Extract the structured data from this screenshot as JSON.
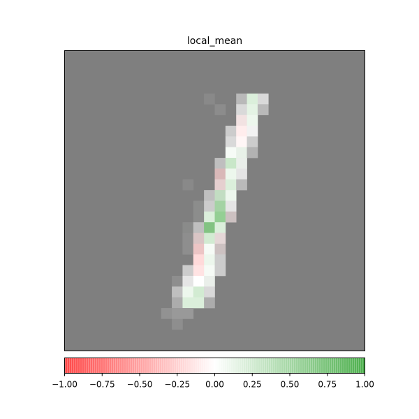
{
  "chart_data": {
    "type": "heatmap",
    "title": "local_mean",
    "grid_size": [
      28,
      28
    ],
    "background_value": 0,
    "background_color": "#7f7f7f",
    "value_range": [
      -1.0,
      1.0
    ],
    "cmap": {
      "negative": "#ff4747",
      "zero": "#ffffff",
      "positive": "#4caf4c"
    },
    "cells": [
      {
        "row": 4,
        "col": 16,
        "value": 0.0,
        "alpha": 0.45
      },
      {
        "row": 4,
        "col": 17,
        "value": 0.2,
        "alpha": 1.0
      },
      {
        "row": 4,
        "col": 18,
        "value": 0.0,
        "alpha": 0.7
      },
      {
        "row": 5,
        "col": 16,
        "value": 0.0,
        "alpha": 0.7
      },
      {
        "row": 5,
        "col": 17,
        "value": 0.15,
        "alpha": 1.0
      },
      {
        "row": 5,
        "col": 18,
        "value": 0.0,
        "alpha": 0.45
      },
      {
        "row": 6,
        "col": 16,
        "value": -0.1,
        "alpha": 0.9
      },
      {
        "row": 6,
        "col": 17,
        "value": 0.1,
        "alpha": 1.0
      },
      {
        "row": 7,
        "col": 15,
        "value": 0.0,
        "alpha": 0.6
      },
      {
        "row": 7,
        "col": 16,
        "value": -0.1,
        "alpha": 1.0
      },
      {
        "row": 7,
        "col": 17,
        "value": 0.0,
        "alpha": 0.9
      },
      {
        "row": 8,
        "col": 15,
        "value": 0.0,
        "alpha": 0.7
      },
      {
        "row": 8,
        "col": 16,
        "value": -0.05,
        "alpha": 1.0
      },
      {
        "row": 8,
        "col": 17,
        "value": 0.0,
        "alpha": 0.6
      },
      {
        "row": 9,
        "col": 15,
        "value": 0.05,
        "alpha": 1.0
      },
      {
        "row": 9,
        "col": 16,
        "value": 0.1,
        "alpha": 0.95
      },
      {
        "row": 9,
        "col": 17,
        "value": 0.0,
        "alpha": 0.4
      },
      {
        "row": 10,
        "col": 14,
        "value": 0.0,
        "alpha": 0.5
      },
      {
        "row": 10,
        "col": 15,
        "value": 0.3,
        "alpha": 1.0
      },
      {
        "row": 10,
        "col": 16,
        "value": 0.05,
        "alpha": 0.9
      },
      {
        "row": 11,
        "col": 14,
        "value": -0.25,
        "alpha": 0.7
      },
      {
        "row": 11,
        "col": 15,
        "value": 0.1,
        "alpha": 1.0
      },
      {
        "row": 11,
        "col": 16,
        "value": 0.0,
        "alpha": 0.8
      },
      {
        "row": 12,
        "col": 14,
        "value": -0.15,
        "alpha": 0.8
      },
      {
        "row": 12,
        "col": 15,
        "value": 0.2,
        "alpha": 1.0
      },
      {
        "row": 12,
        "col": 16,
        "value": 0.0,
        "alpha": 0.45
      },
      {
        "row": 13,
        "col": 13,
        "value": 0.0,
        "alpha": 0.5
      },
      {
        "row": 13,
        "col": 14,
        "value": 0.3,
        "alpha": 0.9
      },
      {
        "row": 13,
        "col": 15,
        "value": 0.1,
        "alpha": 1.0
      },
      {
        "row": 14,
        "col": 13,
        "value": 0.0,
        "alpha": 0.6
      },
      {
        "row": 14,
        "col": 14,
        "value": 0.5,
        "alpha": 0.95
      },
      {
        "row": 14,
        "col": 15,
        "value": 0.0,
        "alpha": 0.8
      },
      {
        "row": 15,
        "col": 13,
        "value": 0.2,
        "alpha": 1.0
      },
      {
        "row": 15,
        "col": 14,
        "value": 0.6,
        "alpha": 1.0
      },
      {
        "row": 15,
        "col": 15,
        "value": -0.1,
        "alpha": 0.6
      },
      {
        "row": 16,
        "col": 12,
        "value": 0.0,
        "alpha": 0.5
      },
      {
        "row": 16,
        "col": 13,
        "value": 0.7,
        "alpha": 0.95
      },
      {
        "row": 16,
        "col": 14,
        "value": 0.2,
        "alpha": 1.0
      },
      {
        "row": 17,
        "col": 12,
        "value": -0.15,
        "alpha": 0.7
      },
      {
        "row": 17,
        "col": 13,
        "value": 0.25,
        "alpha": 1.0
      },
      {
        "row": 17,
        "col": 14,
        "value": -0.1,
        "alpha": 0.8
      },
      {
        "row": 18,
        "col": 12,
        "value": -0.25,
        "alpha": 0.85
      },
      {
        "row": 18,
        "col": 13,
        "value": 0.05,
        "alpha": 1.0
      },
      {
        "row": 18,
        "col": 14,
        "value": -0.1,
        "alpha": 0.6
      },
      {
        "row": 19,
        "col": 12,
        "value": -0.2,
        "alpha": 1.0
      },
      {
        "row": 19,
        "col": 13,
        "value": 0.1,
        "alpha": 1.0
      },
      {
        "row": 19,
        "col": 14,
        "value": 0.0,
        "alpha": 0.6
      },
      {
        "row": 20,
        "col": 11,
        "value": 0.0,
        "alpha": 0.6
      },
      {
        "row": 20,
        "col": 12,
        "value": -0.15,
        "alpha": 1.0
      },
      {
        "row": 20,
        "col": 13,
        "value": 0.05,
        "alpha": 1.0
      },
      {
        "row": 20,
        "col": 14,
        "value": 0.0,
        "alpha": 0.6
      },
      {
        "row": 21,
        "col": 11,
        "value": 0.0,
        "alpha": 0.8
      },
      {
        "row": 21,
        "col": 12,
        "value": 0.0,
        "alpha": 1.0
      },
      {
        "row": 21,
        "col": 13,
        "value": 0.05,
        "alpha": 0.9
      },
      {
        "row": 22,
        "col": 10,
        "value": 0.0,
        "alpha": 0.5
      },
      {
        "row": 22,
        "col": 11,
        "value": 0.1,
        "alpha": 1.0
      },
      {
        "row": 22,
        "col": 12,
        "value": 0.25,
        "alpha": 1.0
      },
      {
        "row": 22,
        "col": 13,
        "value": 0.0,
        "alpha": 0.7
      },
      {
        "row": 23,
        "col": 10,
        "value": 0.0,
        "alpha": 0.35
      },
      {
        "row": 23,
        "col": 11,
        "value": 0.2,
        "alpha": 1.0
      },
      {
        "row": 23,
        "col": 12,
        "value": 0.2,
        "alpha": 1.0
      },
      {
        "row": 23,
        "col": 13,
        "value": 0.0,
        "alpha": 0.35
      },
      {
        "row": 24,
        "col": 10,
        "value": 0.0,
        "alpha": 0.2
      },
      {
        "row": 24,
        "col": 11,
        "value": 0.0,
        "alpha": 0.2
      }
    ],
    "faint_cells": [
      {
        "row": 4,
        "col": 13,
        "value": 0.0,
        "alpha": 0.08
      },
      {
        "row": 5,
        "col": 14,
        "value": 0.0,
        "alpha": 0.1
      },
      {
        "row": 12,
        "col": 11,
        "value": 0.0,
        "alpha": 0.08
      },
      {
        "row": 14,
        "col": 12,
        "value": 0.1,
        "alpha": 0.12
      },
      {
        "row": 15,
        "col": 12,
        "value": 0.1,
        "alpha": 0.12
      },
      {
        "row": 16,
        "col": 11,
        "value": 0.1,
        "alpha": 0.1
      },
      {
        "row": 17,
        "col": 11,
        "value": 0.0,
        "alpha": 0.12
      },
      {
        "row": 18,
        "col": 11,
        "value": 0.0,
        "alpha": 0.12
      },
      {
        "row": 21,
        "col": 10,
        "value": 0.0,
        "alpha": 0.12
      },
      {
        "row": 24,
        "col": 9,
        "value": 0.0,
        "alpha": 0.15
      },
      {
        "row": 25,
        "col": 10,
        "value": 0.0,
        "alpha": 0.12
      }
    ],
    "colorbar": {
      "orientation": "horizontal",
      "range": [
        -1.0,
        1.0
      ],
      "tick_labels": [
        "−1.00",
        "−0.75",
        "−0.50",
        "−0.25",
        "0.00",
        "0.25",
        "0.50",
        "0.75",
        "1.00"
      ],
      "tick_values": [
        -1.0,
        -0.75,
        -0.5,
        -0.25,
        0.0,
        0.25,
        0.5,
        0.75,
        1.0
      ]
    }
  }
}
